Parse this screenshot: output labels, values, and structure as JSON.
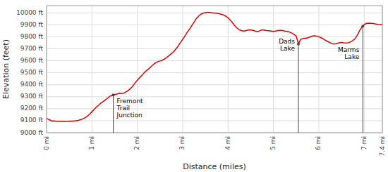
{
  "chart_data": {
    "type": "line",
    "xlabel": "Distance (miles)",
    "ylabel": "Elevation (feet)",
    "color": "#dd0000",
    "grid": true,
    "xlim": [
      0,
      7.4
    ],
    "ylim": [
      9000,
      10060
    ],
    "xticks": [
      {
        "value": 0,
        "label": "0 mi"
      },
      {
        "value": 1,
        "label": "1 mi"
      },
      {
        "value": 2,
        "label": "2 mi"
      },
      {
        "value": 3,
        "label": "3 mi"
      },
      {
        "value": 4,
        "label": "4 mi"
      },
      {
        "value": 5,
        "label": "5 mi"
      },
      {
        "value": 6,
        "label": "6 mi"
      },
      {
        "value": 7,
        "label": "7 mi"
      },
      {
        "value": 7.4,
        "label": "7.4 mi"
      }
    ],
    "yticks": [
      {
        "value": 9000,
        "label": "9000 ft"
      },
      {
        "value": 9100,
        "label": "9100 ft"
      },
      {
        "value": 9200,
        "label": "9200 ft"
      },
      {
        "value": 9300,
        "label": "9300 ft"
      },
      {
        "value": 9400,
        "label": "9400 ft"
      },
      {
        "value": 9500,
        "label": "9500 ft"
      },
      {
        "value": 9600,
        "label": "9600 ft"
      },
      {
        "value": 9700,
        "label": "9700 ft"
      },
      {
        "value": 9800,
        "label": "9800 ft"
      },
      {
        "value": 9900,
        "label": "9900 ft"
      },
      {
        "value": 10000,
        "label": "10000 ft"
      }
    ],
    "annotations": [
      {
        "text": "Fremont\nTrail\nJunction",
        "x": 1.47,
        "y": 9315
      },
      {
        "text": "Dads\nLake",
        "x": 5.55,
        "y": 9740
      },
      {
        "text": "Marms\nLake",
        "x": 6.97,
        "y": 9888
      }
    ],
    "x": [
      0.0,
      0.02,
      0.04,
      0.06,
      0.08,
      0.1,
      0.15,
      0.2,
      0.25,
      0.3,
      0.35,
      0.4,
      0.45,
      0.5,
      0.55,
      0.6,
      0.65,
      0.7,
      0.75,
      0.8,
      0.85,
      0.9,
      0.95,
      1.0,
      1.05,
      1.1,
      1.15,
      1.2,
      1.25,
      1.3,
      1.35,
      1.4,
      1.45,
      1.47,
      1.5,
      1.55,
      1.6,
      1.65,
      1.7,
      1.75,
      1.8,
      1.85,
      1.9,
      1.95,
      2.0,
      2.05,
      2.1,
      2.15,
      2.2,
      2.25,
      2.3,
      2.35,
      2.4,
      2.45,
      2.5,
      2.55,
      2.6,
      2.65,
      2.7,
      2.75,
      2.8,
      2.85,
      2.9,
      2.95,
      3.0,
      3.05,
      3.1,
      3.15,
      3.2,
      3.25,
      3.3,
      3.35,
      3.4,
      3.45,
      3.5,
      3.55,
      3.6,
      3.65,
      3.7,
      3.75,
      3.8,
      3.85,
      3.9,
      3.95,
      4.0,
      4.05,
      4.1,
      4.15,
      4.2,
      4.25,
      4.3,
      4.35,
      4.4,
      4.45,
      4.5,
      4.55,
      4.6,
      4.65,
      4.7,
      4.75,
      4.8,
      4.85,
      4.9,
      4.95,
      5.0,
      5.05,
      5.1,
      5.15,
      5.2,
      5.25,
      5.3,
      5.35,
      5.4,
      5.45,
      5.5,
      5.55,
      5.58,
      5.6,
      5.65,
      5.7,
      5.75,
      5.8,
      5.85,
      5.9,
      5.95,
      6.0,
      6.05,
      6.1,
      6.15,
      6.2,
      6.25,
      6.3,
      6.35,
      6.4,
      6.45,
      6.5,
      6.55,
      6.6,
      6.65,
      6.7,
      6.75,
      6.8,
      6.85,
      6.9,
      6.95,
      6.97,
      7.0,
      7.05,
      7.1,
      7.15,
      7.2,
      7.25,
      7.3,
      7.35,
      7.4
    ],
    "values": [
      9120,
      9115,
      9112,
      9108,
      9105,
      9100,
      9098,
      9096,
      9095,
      9094,
      9093,
      9092,
      9093,
      9095,
      9097,
      9098,
      9100,
      9103,
      9108,
      9115,
      9125,
      9138,
      9155,
      9175,
      9195,
      9215,
      9230,
      9248,
      9260,
      9275,
      9290,
      9305,
      9312,
      9315,
      9318,
      9322,
      9328,
      9326,
      9330,
      9340,
      9352,
      9368,
      9390,
      9415,
      9438,
      9458,
      9478,
      9500,
      9518,
      9532,
      9550,
      9568,
      9582,
      9592,
      9598,
      9605,
      9615,
      9628,
      9643,
      9658,
      9675,
      9698,
      9722,
      9752,
      9778,
      9808,
      9838,
      9862,
      9892,
      9922,
      9952,
      9972,
      9988,
      9997,
      10002,
      10005,
      10003,
      10000,
      9998,
      9997,
      9993,
      9988,
      9982,
      9972,
      9958,
      9938,
      9915,
      9892,
      9872,
      9858,
      9850,
      9848,
      9852,
      9857,
      9858,
      9854,
      9848,
      9843,
      9850,
      9858,
      9855,
      9852,
      9850,
      9848,
      9845,
      9847,
      9852,
      9854,
      9852,
      9848,
      9845,
      9840,
      9832,
      9820,
      9808,
      9740,
      9765,
      9778,
      9785,
      9788,
      9790,
      9798,
      9805,
      9808,
      9805,
      9800,
      9792,
      9782,
      9770,
      9760,
      9750,
      9744,
      9740,
      9745,
      9750,
      9753,
      9750,
      9748,
      9750,
      9758,
      9768,
      9785,
      9815,
      9852,
      9882,
      9888,
      9902,
      9912,
      9914,
      9912,
      9910,
      9907,
      9904,
      9902,
      9900
    ]
  }
}
